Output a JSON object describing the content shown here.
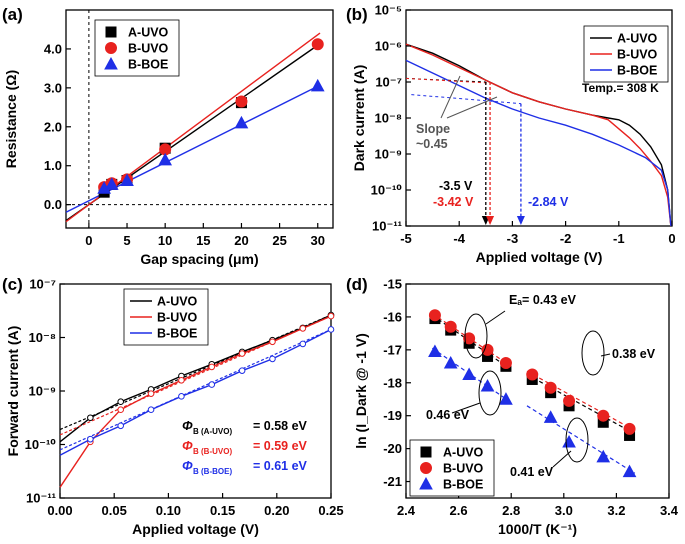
{
  "colors": {
    "black": "#000000",
    "red": "#e8221f",
    "blue": "#1f2fe6",
    "grid": "#222222"
  },
  "chart_data": [
    {
      "panel": "(a)",
      "type": "scatter",
      "xlabel": "Gap spacing (μm)",
      "ylabel": "Resistance (Ω)",
      "xlim": [
        -3,
        32
      ],
      "ylim": [
        -0.6,
        5.0
      ],
      "xticks": [
        0,
        5,
        10,
        15,
        20,
        25,
        30
      ],
      "yticks": [
        0.0,
        1.0,
        2.0,
        3.0,
        4.0
      ],
      "ytick_labels": [
        "0.0",
        "1.0",
        "2.0",
        "3.0",
        "4.0"
      ],
      "legend": "top-left",
      "series": [
        {
          "name": "A-UVO",
          "color": "#000000",
          "marker": "square",
          "x": [
            2,
            3,
            5,
            10,
            20
          ],
          "y": [
            0.32,
            0.52,
            0.62,
            1.45,
            2.62
          ],
          "fit": {
            "slope": 0.1365,
            "intercept": 0.0
          }
        },
        {
          "name": "B-UVO",
          "color": "#e8221f",
          "marker": "circle",
          "x": [
            2,
            3,
            5,
            10,
            20,
            30
          ],
          "y": [
            0.45,
            0.55,
            0.65,
            1.42,
            2.65,
            4.12
          ],
          "fit": {
            "slope": 0.1455,
            "intercept": 0.0
          }
        },
        {
          "name": "B-BOE",
          "color": "#1f2fe6",
          "marker": "triangle",
          "x": [
            2,
            3,
            5,
            10,
            20,
            30
          ],
          "y": [
            0.42,
            0.52,
            0.62,
            1.15,
            2.1,
            3.05
          ],
          "fit": {
            "slope": 0.098,
            "intercept": 0.1
          }
        }
      ]
    },
    {
      "panel": "(b)",
      "type": "line",
      "xlabel": "Applied voltage (V)",
      "ylabel": "Dark current (A)",
      "yscale": "log",
      "xlim": [
        -5,
        0
      ],
      "ylim_exp": [
        -11,
        -5
      ],
      "xticks": [
        -5,
        -4,
        -3,
        -2,
        -1,
        0
      ],
      "ytick_labels": [
        "10⁻¹¹",
        "10⁻¹⁰",
        "10⁻⁹",
        "10⁻⁸",
        "10⁻⁷",
        "10⁻⁶",
        "10⁻⁵"
      ],
      "legend": "top-right",
      "temp_label": "Temp.= 308 K",
      "slope_label": [
        "Slope",
        "~0.45"
      ],
      "voltage_labels": [
        {
          "text": "-3.5 V",
          "color": "#000000"
        },
        {
          "text": "-3.42 V",
          "color": "#e8221f"
        },
        {
          "text": "-2.84 V",
          "color": "#1f2fe6"
        }
      ],
      "series": [
        {
          "name": "A-UVO",
          "color": "#000000",
          "x": [
            -5,
            -4.5,
            -4,
            -3.5,
            -3,
            -2.5,
            -2,
            -1.5,
            -1.2,
            -1.0,
            -0.8,
            -0.6,
            -0.4,
            -0.2,
            -0.08,
            -0.02
          ],
          "y_exp": [
            -5.95,
            -6.2,
            -6.55,
            -6.95,
            -7.3,
            -7.55,
            -7.75,
            -7.92,
            -8.0,
            -8.05,
            -8.2,
            -8.45,
            -8.8,
            -9.3,
            -10.0,
            -11.0
          ]
        },
        {
          "name": "B-UVO",
          "color": "#e8221f",
          "x": [
            -5,
            -4.5,
            -4,
            -3.5,
            -3,
            -2.5,
            -2,
            -1.5,
            -1.2,
            -1.0,
            -0.8,
            -0.6,
            -0.4,
            -0.2,
            -0.08,
            -0.02
          ],
          "y_exp": [
            -5.95,
            -6.25,
            -6.6,
            -6.95,
            -7.3,
            -7.55,
            -7.75,
            -7.92,
            -8.05,
            -8.3,
            -8.55,
            -8.85,
            -9.2,
            -9.6,
            -10.2,
            -11.0
          ]
        },
        {
          "name": "B-BOE",
          "color": "#1f2fe6",
          "x": [
            -5,
            -4.5,
            -4,
            -3.5,
            -3,
            -2.5,
            -2,
            -1.5,
            -1.0,
            -0.5,
            -0.2,
            -0.08,
            -0.02
          ],
          "y_exp": [
            -6.4,
            -6.75,
            -7.1,
            -7.45,
            -7.75,
            -8.0,
            -8.2,
            -8.45,
            -8.75,
            -9.1,
            -9.45,
            -10.0,
            -11.0
          ]
        }
      ]
    },
    {
      "panel": "(c)",
      "type": "line",
      "xlabel": "Applied voltage (V)",
      "ylabel": "Forward current (A)",
      "yscale": "log",
      "xlim": [
        0,
        0.25
      ],
      "ylim_exp": [
        -11,
        -7
      ],
      "xticks": [
        0.0,
        0.05,
        0.1,
        0.15,
        0.2,
        0.25
      ],
      "xtick_labels": [
        "0.00",
        "0.05",
        "0.10",
        "0.15",
        "0.20",
        "0.25"
      ],
      "ytick_labels": [
        "10⁻¹¹",
        "10⁻¹⁰",
        "10⁻⁹",
        "10⁻⁸",
        "10⁻⁷"
      ],
      "legend": "top-center",
      "barrier_labels": [
        {
          "sub": "B (A-UVO)",
          "value": "= 0.58 eV",
          "color": "#000000"
        },
        {
          "sub": "B (B-UVO)",
          "value": "= 0.59 eV",
          "color": "#e8221f"
        },
        {
          "sub": "B (B-BOE)",
          "value": "= 0.61 eV",
          "color": "#1f2fe6"
        }
      ],
      "series": [
        {
          "name": "A-UVO",
          "color": "#000000",
          "x": [
            0,
            0.028,
            0.056,
            0.084,
            0.112,
            0.14,
            0.168,
            0.196,
            0.224,
            0.25
          ],
          "y_exp": [
            -9.95,
            -9.5,
            -9.2,
            -8.97,
            -8.72,
            -8.5,
            -8.27,
            -8.05,
            -7.82,
            -7.58
          ],
          "fit_y_exp": [
            -9.72,
            -7.58
          ]
        },
        {
          "name": "B-UVO",
          "color": "#e8221f",
          "x": [
            0,
            0.028,
            0.056,
            0.084,
            0.112,
            0.14,
            0.168,
            0.196,
            0.224,
            0.25
          ],
          "y_exp": [
            -10.8,
            -9.95,
            -9.35,
            -9.05,
            -8.8,
            -8.55,
            -8.3,
            -8.08,
            -7.83,
            -7.6
          ],
          "fit_y_exp": [
            -9.82,
            -7.6
          ]
        },
        {
          "name": "B-BOE",
          "color": "#1f2fe6",
          "x": [
            0,
            0.028,
            0.056,
            0.084,
            0.112,
            0.14,
            0.168,
            0.196,
            0.224,
            0.25
          ],
          "y_exp": [
            -10.2,
            -9.9,
            -9.65,
            -9.35,
            -9.1,
            -8.88,
            -8.62,
            -8.4,
            -8.12,
            -7.85
          ],
          "fit_y_exp": [
            -10.1,
            -7.85
          ]
        }
      ]
    },
    {
      "panel": "(d)",
      "type": "scatter",
      "xlabel": "1000/T (K⁻¹)",
      "ylabel": "ln (I_Dark @ -1 V)",
      "xlim": [
        2.4,
        3.4
      ],
      "ylim": [
        -21.5,
        -15
      ],
      "xticks": [
        2.4,
        2.6,
        2.8,
        3.0,
        3.2,
        3.4
      ],
      "xtick_labels": [
        "2.4",
        "2.6",
        "2.8",
        "3.0",
        "3.2",
        "3.4"
      ],
      "yticks": [
        -21,
        -20,
        -19,
        -18,
        -17,
        -16,
        -15
      ],
      "legend": "bottom-left",
      "annotations": [
        "Eₐ= 0.43 eV",
        "0.38 eV",
        "0.46 eV",
        "0.41 eV"
      ],
      "series": [
        {
          "name": "A-UVO",
          "color": "#000000",
          "marker": "square",
          "x": [
            2.51,
            2.57,
            2.64,
            2.71,
            2.78,
            2.88,
            2.95,
            3.02,
            3.15,
            3.25
          ],
          "y": [
            -16.05,
            -16.4,
            -16.8,
            -17.2,
            -17.5,
            -17.9,
            -18.3,
            -18.7,
            -19.2,
            -19.6
          ],
          "fits": [
            {
              "x": [
                2.5,
                2.8
              ],
              "y": [
                -15.95,
                -17.6
              ]
            },
            {
              "x": [
                2.86,
                3.27
              ],
              "y": [
                -17.75,
                -19.55
              ]
            }
          ]
        },
        {
          "name": "B-UVO",
          "color": "#e8221f",
          "marker": "circle",
          "x": [
            2.51,
            2.57,
            2.64,
            2.71,
            2.78,
            2.88,
            2.95,
            3.02,
            3.15,
            3.25
          ],
          "y": [
            -15.95,
            -16.3,
            -16.65,
            -17.0,
            -17.4,
            -17.75,
            -18.15,
            -18.55,
            -19.0,
            -19.4
          ],
          "fits": [
            {
              "x": [
                2.5,
                2.8
              ],
              "y": [
                -15.9,
                -17.5
              ]
            },
            {
              "x": [
                2.86,
                3.27
              ],
              "y": [
                -17.65,
                -19.45
              ]
            }
          ]
        },
        {
          "name": "B-BOE",
          "color": "#1f2fe6",
          "marker": "triangle",
          "x": [
            2.51,
            2.57,
            2.64,
            2.71,
            2.78,
            2.95,
            3.02,
            3.15,
            3.25
          ],
          "y": [
            -17.05,
            -17.4,
            -17.75,
            -18.1,
            -18.5,
            -19.05,
            -19.8,
            -20.25,
            -20.7
          ],
          "fits": [
            {
              "x": [
                2.5,
                2.8
              ],
              "y": [
                -16.95,
                -18.6
              ]
            },
            {
              "x": [
                2.86,
                3.27
              ],
              "y": [
                -18.7,
                -20.75
              ]
            }
          ]
        }
      ]
    }
  ]
}
